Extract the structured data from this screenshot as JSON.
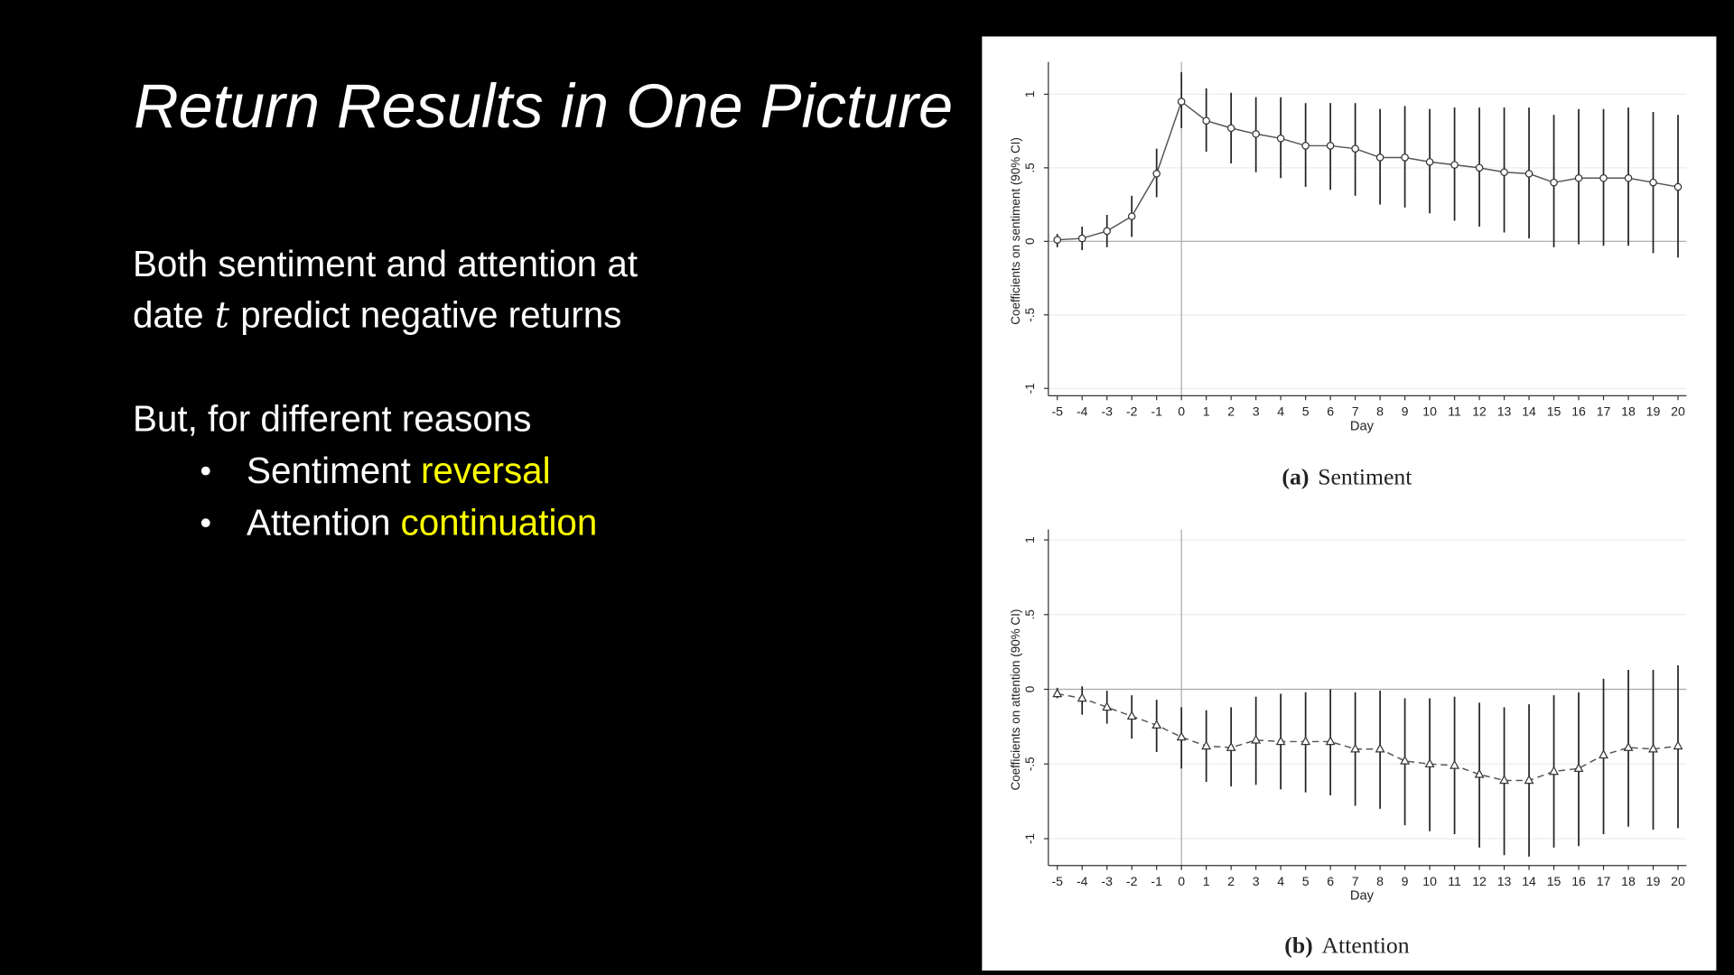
{
  "slide": {
    "title": "Return Results in One Picture",
    "body": {
      "line1": "Both sentiment and attention at",
      "line2": [
        "date",
        "t",
        "predict negative returns"
      ],
      "line3": "But, for different reasons",
      "bullets": [
        [
          "Sentiment",
          "reversal"
        ],
        [
          "Attention",
          "continuation"
        ]
      ]
    },
    "highlight_color": "#ffff00"
  },
  "chart_data": [
    {
      "type": "line",
      "caption_tag": "(a)",
      "caption": "Sentiment",
      "x_label": "Day",
      "y_label": "Coefficients on sentiment (90% CI)",
      "x": [
        -5,
        -4,
        -3,
        -2,
        -1,
        0,
        1,
        2,
        3,
        4,
        5,
        6,
        7,
        8,
        9,
        10,
        11,
        12,
        13,
        14,
        15,
        16,
        17,
        18,
        19,
        20
      ],
      "values": [
        0.01,
        0.02,
        0.07,
        0.17,
        0.46,
        0.95,
        0.82,
        0.77,
        0.73,
        0.7,
        0.65,
        0.65,
        0.63,
        0.57,
        0.57,
        0.54,
        0.52,
        0.5,
        0.47,
        0.46,
        0.4,
        0.43,
        0.43,
        0.43,
        0.4,
        0.37
      ],
      "lower": [
        -0.04,
        -0.06,
        -0.04,
        0.03,
        0.3,
        0.77,
        0.61,
        0.53,
        0.47,
        0.43,
        0.37,
        0.35,
        0.31,
        0.25,
        0.23,
        0.19,
        0.14,
        0.1,
        0.06,
        0.02,
        -0.04,
        -0.02,
        -0.03,
        -0.03,
        -0.08,
        -0.11
      ],
      "upper": [
        0.05,
        0.1,
        0.18,
        0.31,
        0.63,
        1.15,
        1.04,
        1.01,
        0.98,
        0.98,
        0.94,
        0.94,
        0.94,
        0.9,
        0.92,
        0.9,
        0.91,
        0.91,
        0.91,
        0.91,
        0.86,
        0.9,
        0.9,
        0.91,
        0.88,
        0.86
      ],
      "color": "#555555",
      "marker": "circle",
      "line_style": "solid",
      "xlim": [
        -5.36,
        20.34
      ],
      "ylim": [
        -1.05,
        1.19
      ],
      "xticks": [
        -5,
        -4,
        -3,
        -2,
        -1,
        0,
        1,
        2,
        3,
        4,
        5,
        6,
        7,
        8,
        9,
        10,
        11,
        12,
        13,
        14,
        15,
        16,
        17,
        18,
        19,
        20
      ],
      "yticks": [
        -1,
        {
          "value": -0.5,
          "label": "-.5"
        },
        0,
        {
          "value": 0.5,
          "label": ".5"
        },
        1
      ],
      "grid": true,
      "hline": 0,
      "vline": 0
    },
    {
      "type": "line",
      "caption_tag": "(b)",
      "caption": "Attention",
      "x_label": "Day",
      "y_label": "Coefficients on attention (90% CI)",
      "x": [
        -5,
        -4,
        -3,
        -2,
        -1,
        0,
        1,
        2,
        3,
        4,
        5,
        6,
        7,
        8,
        9,
        10,
        11,
        12,
        13,
        14,
        15,
        16,
        17,
        18,
        19,
        20
      ],
      "values": [
        -0.03,
        -0.06,
        -0.12,
        -0.18,
        -0.24,
        -0.32,
        -0.38,
        -0.39,
        -0.34,
        -0.35,
        -0.35,
        -0.35,
        -0.4,
        -0.4,
        -0.48,
        -0.5,
        -0.51,
        -0.57,
        -0.61,
        -0.61,
        -0.55,
        -0.53,
        -0.44,
        -0.39,
        -0.4,
        -0.38
      ],
      "lower": [
        -0.06,
        -0.17,
        -0.23,
        -0.33,
        -0.42,
        -0.53,
        -0.62,
        -0.65,
        -0.64,
        -0.67,
        -0.69,
        -0.71,
        -0.78,
        -0.8,
        -0.91,
        -0.95,
        -0.97,
        -1.06,
        -1.11,
        -1.12,
        -1.06,
        -1.05,
        -0.97,
        -0.92,
        -0.94,
        -0.93
      ],
      "upper": [
        0.01,
        0.02,
        -0.01,
        -0.04,
        -0.07,
        -0.12,
        -0.14,
        -0.12,
        -0.05,
        -0.03,
        -0.02,
        0.0,
        -0.02,
        -0.01,
        -0.06,
        -0.06,
        -0.05,
        -0.09,
        -0.12,
        -0.1,
        -0.04,
        -0.02,
        0.07,
        0.13,
        0.13,
        0.16
      ],
      "color": "#555555",
      "marker": "triangle",
      "line_style": "dashed",
      "xlim": [
        -5.36,
        20.34
      ],
      "ylim": [
        -1.18,
        1.04
      ],
      "xticks": [
        -5,
        -4,
        -3,
        -2,
        -1,
        0,
        1,
        2,
        3,
        4,
        5,
        6,
        7,
        8,
        9,
        10,
        11,
        12,
        13,
        14,
        15,
        16,
        17,
        18,
        19,
        20
      ],
      "yticks": [
        -1,
        {
          "value": -0.5,
          "label": "-.5"
        },
        0,
        {
          "value": 0.5,
          "label": ".5"
        },
        1
      ],
      "grid": true,
      "hline": 0,
      "vline": 0
    }
  ]
}
